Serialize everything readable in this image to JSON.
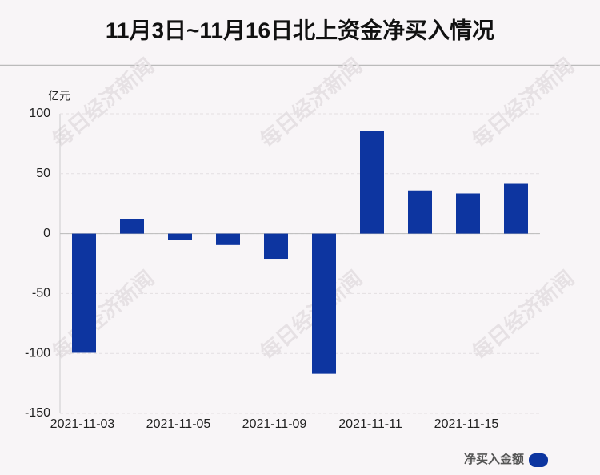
{
  "chart_data": {
    "type": "bar",
    "title": "11月3日~11月16日北上资金净买入情况",
    "y_unit": "亿元",
    "categories": [
      "2021-11-03",
      null,
      "2021-11-05",
      null,
      "2021-11-09",
      null,
      "2021-11-11",
      null,
      "2021-11-15",
      null
    ],
    "series": [
      {
        "name": "净买入金额",
        "color": "#0d35a0",
        "values": [
          -99.5,
          12,
          -5.5,
          -9.5,
          -21,
          -117,
          85.5,
          36,
          33.5,
          41.5
        ]
      }
    ],
    "ylim": [
      -150,
      100
    ],
    "yticks": [
      -150,
      -100,
      -50,
      0,
      50,
      100
    ],
    "grid": true,
    "watermark": "每日经济新闻"
  }
}
